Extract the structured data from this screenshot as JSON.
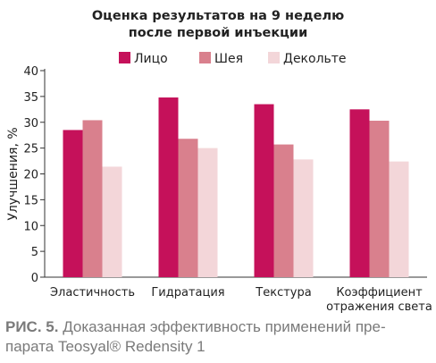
{
  "chart_data": {
    "type": "bar",
    "title": [
      "Оценка результатов на 9 неделю",
      "после первой инъекции"
    ],
    "ylabel": "Улучшения, %",
    "xlabel": "",
    "ylim": [
      0,
      40
    ],
    "yticks": [
      0,
      5,
      10,
      15,
      20,
      25,
      30,
      35,
      40
    ],
    "grid": false,
    "legend_position": "top",
    "categories": [
      [
        "Эластичность"
      ],
      [
        "Гидратация"
      ],
      [
        "Текстура"
      ],
      [
        "Коэффициент",
        "отражения света"
      ]
    ],
    "series": [
      {
        "name": "Лицо",
        "color": "#c5115a",
        "values": [
          28.5,
          34.8,
          33.5,
          32.5
        ]
      },
      {
        "name": "Шея",
        "color": "#d9808d",
        "values": [
          30.4,
          26.8,
          25.7,
          30.3
        ]
      },
      {
        "name": "Декольте",
        "color": "#f3d6d9",
        "values": [
          21.4,
          25.0,
          22.8,
          22.4
        ]
      }
    ]
  },
  "caption": {
    "label": "РИС. 5.",
    "text": " Доказанная эффективность применений пре-\nпарата Teosyal® Redensity 1"
  }
}
